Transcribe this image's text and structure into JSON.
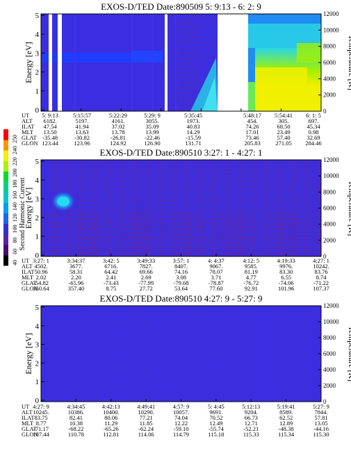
{
  "figure": {
    "colorbar": {
      "label": "Second Harmonic Current",
      "ticks": [
        "40",
        "60",
        "80",
        "100",
        "120",
        "140",
        "160",
        "180",
        "200",
        "220",
        "240",
        "250"
      ],
      "colors": [
        "#000000",
        "#4a0a6e",
        "#5a22a8",
        "#3030d8",
        "#1e64f0",
        "#00a0f0",
        "#00c8c8",
        "#00d28c",
        "#00dc32",
        "#aaf000",
        "#f0f000",
        "#ff9600",
        "#ff0000"
      ]
    },
    "colors": {
      "background_plasma": "#3a2ee0",
      "bright_band": "#1e3cff",
      "sparkle": "#c01818",
      "cyan_patch": "#28c8e8",
      "no_data": "#ffffff"
    }
  },
  "chart_data": [
    {
      "type": "heatmap",
      "title": "EXOS-D/TED   Date:890509  5: 9:13 - 6: 2: 9",
      "ylabel": "Energy [eV]",
      "y2label": "Temperature [K]",
      "ylim": [
        0,
        5
      ],
      "y2lim": [
        0,
        12000
      ],
      "yticks": [
        "0",
        "1",
        "2",
        "3",
        "4",
        "5"
      ],
      "y2ticks": [
        "0",
        "2000",
        "4000",
        "6000",
        "8000",
        "10000",
        "12000"
      ],
      "row_labels": [
        "UT",
        "ALT",
        "ILAT",
        "MLT",
        "GLAT",
        "GLON"
      ],
      "columns": [
        [
          "5: 9:13",
          "6182.",
          "47.54",
          "13.50",
          "-35.48",
          "123.44"
        ],
        [
          "5:15:57",
          "5197.",
          "41.94",
          "13.63",
          "-30.82",
          "123.96"
        ],
        [
          "5:22:29",
          "4161.",
          "37.02",
          "13.78",
          "-26.81",
          "124.92"
        ],
        [
          "5:29: 9",
          "3055.",
          "35.09",
          "13.99",
          "-22.46",
          "126.90"
        ],
        [
          "5:35:45",
          "1973.",
          "40.83",
          "14.29",
          "-15.59",
          "131.71"
        ],
        [
          "5:48:17",
          "454.",
          "74.26",
          "17.01",
          "73.46",
          "205.83"
        ],
        [
          "5:54:41",
          "305.",
          "68.50",
          "23.49",
          "57.40",
          "271.05"
        ],
        [
          "6: 1: 5",
          "697.",
          "45.34",
          "0.98",
          "32.69",
          "284.46"
        ]
      ]
    },
    {
      "type": "heatmap",
      "title": "EXOS-D/TED   Date:890510  3:27: 1 - 4:27: 1",
      "ylabel": "Energy [eV]",
      "y2label": "Temperature [K]",
      "ylim": [
        0,
        5
      ],
      "y2lim": [
        0,
        12000
      ],
      "yticks": [
        "0",
        "1",
        "2",
        "3",
        "4",
        "5"
      ],
      "y2ticks": [
        "0",
        "2000",
        "4000",
        "6000",
        "8000",
        "10000",
        "12000"
      ],
      "row_labels": [
        "UT",
        "ALT",
        "ILAT",
        "MLT",
        "GLAT",
        "GLON"
      ],
      "columns": [
        [
          "3:27: 1",
          "4502.",
          "50.96",
          "2.02",
          "-54.82",
          "350.64"
        ],
        [
          "3:34:37",
          "3677.",
          "58.31",
          "2.20",
          "-65.96",
          "357.40"
        ],
        [
          "3:42: 5",
          "6716.",
          "64.42",
          "2.41",
          "-73.43",
          "8.75"
        ],
        [
          "3:49:33",
          "7827.",
          "69.66",
          "2.69",
          "-77.99",
          "27.72"
        ],
        [
          "3:57: 1",
          "8407.",
          "74.16",
          "3.08",
          "-79.68",
          "53.64"
        ],
        [
          "4: 4:37",
          "9067.",
          "78.07",
          "3.71",
          "-78.87",
          "77.60"
        ],
        [
          "4:12: 5",
          "9585.",
          "81.19",
          "4.77",
          "-76.72",
          "92.91"
        ],
        [
          "4:19:33",
          "9976.",
          "83.30",
          "6.55",
          "-74.06",
          "101.96"
        ],
        [
          "4:27: 1",
          "10242.",
          "83.76",
          "8.74",
          "-71.22",
          "107.37"
        ]
      ]
    },
    {
      "type": "heatmap",
      "title": "EXOS-D/TED   Date:890510  4:27: 9 - 5:27: 9",
      "ylabel": "Energy [eV]",
      "y2label": "Temperature [K]",
      "ylim": [
        0,
        5
      ],
      "y2lim": [
        0,
        12000
      ],
      "yticks": [
        "0",
        "1",
        "2",
        "3",
        "4",
        "5"
      ],
      "y2ticks": [
        "0",
        "2000",
        "4000",
        "6000",
        "8000",
        "10000",
        "12000"
      ],
      "row_labels": [
        "UT",
        "ALT",
        "ILAT",
        "MLT",
        "GLAT",
        "GLON"
      ],
      "columns": [
        [
          "4:27: 9",
          "10245.",
          "83.75",
          "8.77",
          "-71.17",
          "107.44"
        ],
        [
          "4:34:45",
          "10386.",
          "82.41",
          "10.38",
          "-68.22",
          "110.78"
        ],
        [
          "4:42:13",
          "10400.",
          "80.06",
          "11.29",
          "-65.26",
          "112.81"
        ],
        [
          "4:49:41",
          "10290.",
          "77.21",
          "11.85",
          "-62.24",
          "114.06"
        ],
        [
          "4:57: 9",
          "10057.",
          "74.04",
          "12.22",
          "-59.10",
          "114.79"
        ],
        [
          "5: 4:45",
          "9691.",
          "70.52",
          "12.49",
          "-55.74",
          "115.18"
        ],
        [
          "5:12:13",
          "9204.",
          "66.73",
          "12.71",
          "-52.21",
          "115.33"
        ],
        [
          "5:19:41",
          "8589.",
          "62.52",
          "12.89",
          "-48.38",
          "115.34"
        ],
        [
          "5:27: 9",
          "7844.",
          "57.81",
          "13.05",
          "-44.16",
          "115.30"
        ]
      ]
    }
  ]
}
